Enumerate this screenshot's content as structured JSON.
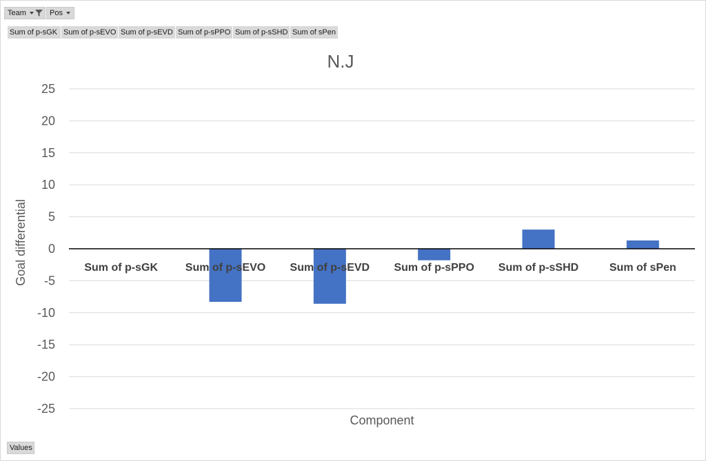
{
  "filters": {
    "team_label": "Team",
    "pos_label": "Pos"
  },
  "value_fields": [
    "Sum of p-sGK",
    "Sum of p-sEVO",
    "Sum of p-sEVD",
    "Sum of p-sPPO",
    "Sum of p-sSHD",
    "Sum of sPen"
  ],
  "values_button": "Values",
  "colors": {
    "bar": "#4472c4",
    "grid": "#d9d9d9",
    "axis": "#000000"
  },
  "chart_data": {
    "type": "bar",
    "title": "N.J",
    "xlabel": "Component",
    "ylabel": "Goal differential",
    "categories": [
      "Sum of p-sGK",
      "Sum of p-sEVO",
      "Sum of p-sEVD",
      "Sum of p-sPPO",
      "Sum of p-sSHD",
      "Sum of sPen"
    ],
    "values": [
      0,
      -8.3,
      -8.6,
      -1.8,
      3.0,
      1.3
    ],
    "ylim": [
      -25,
      25
    ],
    "yticks": [
      25,
      20,
      15,
      10,
      5,
      0,
      -5,
      -10,
      -15,
      -20,
      -25
    ],
    "grid": true,
    "legend": "none"
  }
}
